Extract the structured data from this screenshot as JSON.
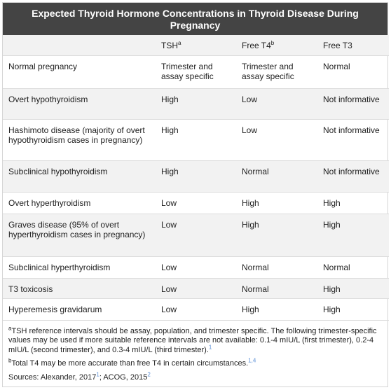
{
  "title": "Expected Thyroid Hormone Concentrations in Thyroid Disease During Pregnancy",
  "headers": {
    "condition": "",
    "tsh": "TSH",
    "tsh_mark": "a",
    "free_t4": "Free T4",
    "free_t4_mark": "b",
    "free_t3": "Free T3"
  },
  "rows": [
    {
      "condition": "Normal pregnancy",
      "tsh": "Trimester and assay specific",
      "free_t4": "Trimester and assay specific",
      "free_t3": "Normal"
    },
    {
      "condition": "Overt hypothyroidism",
      "tsh": "High",
      "free_t4": "Low",
      "free_t3": "Not informative"
    },
    {
      "condition": "Hashimoto disease (majority of overt hypothyroidism cases in pregnancy)",
      "tsh": "High",
      "free_t4": "Low",
      "free_t3": "Not informative"
    },
    {
      "condition": "Subclinical hypothyroidism",
      "tsh": "High",
      "free_t4": "Normal",
      "free_t3": "Not informative"
    },
    {
      "condition": "Overt hyperthyroidism",
      "tsh": "Low",
      "free_t4": "High",
      "free_t3": "High"
    },
    {
      "condition": "Graves disease (95% of overt hyperthyroidism cases in pregnancy)",
      "tsh": "Low",
      "free_t4": "High",
      "free_t3": "High"
    },
    {
      "condition": "Subclinical hyperthyroidism",
      "tsh": "Low",
      "free_t4": "Normal",
      "free_t3": "Normal"
    },
    {
      "condition": "T3 toxicosis",
      "tsh": "Low",
      "free_t4": "Normal",
      "free_t3": "High"
    },
    {
      "condition": "Hyperemesis gravidarum",
      "tsh": "Low",
      "free_t4": "High",
      "free_t3": "High"
    }
  ],
  "footnotes": {
    "a_mark": "a",
    "a_text": "TSH reference intervals should be assay, population, and trimester specific. The following trimester-specific values may be used if more suitable reference intervals are not available: 0.1-4 mIU/L (first trimester), 0.2-4 mIU/L (second trimester), and 0.3-4 mIU/L (third trimester).",
    "a_ref": "1",
    "b_mark": "b",
    "b_text": "Total T4 may be more accurate than free T4 in certain circumstances.",
    "b_ref": "1,4",
    "sources_text": "Sources: Alexander, 2017",
    "sources_ref1": "1",
    "sources_sep": "; ACOG, 2015",
    "sources_ref2": "2"
  },
  "colors": {
    "title_bg": "#444444",
    "alt_row_bg": "#f2f2f2",
    "ref_link": "#5b8fd6"
  }
}
